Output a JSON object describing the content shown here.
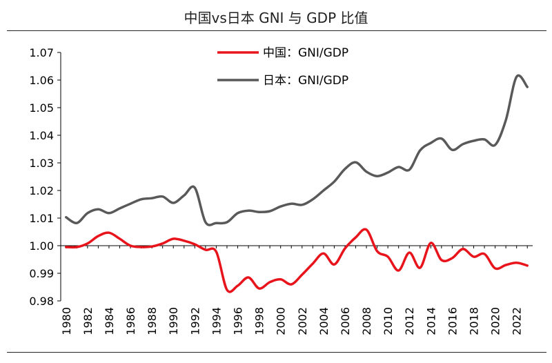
{
  "title": "中国vs日本 GNI 与 GDP 比值",
  "chart_data": {
    "type": "line",
    "title": "中国vs日本 GNI 与 GDP 比值",
    "xlabel": "",
    "ylabel": "",
    "ylim": [
      0.98,
      1.07
    ],
    "y_ticks": [
      "0.98",
      "0.99",
      "1.00",
      "1.01",
      "1.02",
      "1.03",
      "1.04",
      "1.05",
      "1.06",
      "1.07"
    ],
    "x_ticks": [
      "1980",
      "1982",
      "1984",
      "1986",
      "1988",
      "1990",
      "1992",
      "1994",
      "1996",
      "1998",
      "2000",
      "2002",
      "2004",
      "2006",
      "2008",
      "2010",
      "2012",
      "2014",
      "2016",
      "2018",
      "2020",
      "2022"
    ],
    "x": [
      1980,
      1981,
      1982,
      1983,
      1984,
      1985,
      1986,
      1987,
      1988,
      1989,
      1990,
      1991,
      1992,
      1993,
      1994,
      1995,
      1996,
      1997,
      1998,
      1999,
      2000,
      2001,
      2002,
      2003,
      2004,
      2005,
      2006,
      2007,
      2008,
      2009,
      2010,
      2011,
      2012,
      2013,
      2014,
      2015,
      2016,
      2017,
      2018,
      2019,
      2020,
      2021,
      2022,
      2023
    ],
    "grid": false,
    "legend_position": "top-center",
    "series": [
      {
        "name": "中国：GNI/GDP",
        "color": "#e8141c",
        "values": [
          0.9995,
          0.9995,
          1.0008,
          1.0035,
          1.0047,
          1.0025,
          1.0,
          0.9995,
          0.9997,
          1.0008,
          1.0025,
          1.0018,
          1.0005,
          0.9985,
          0.9978,
          0.984,
          0.9855,
          0.9885,
          0.9845,
          0.9868,
          0.9878,
          0.986,
          0.9895,
          0.9935,
          0.9972,
          0.9932,
          0.999,
          1.003,
          1.0058,
          0.998,
          0.996,
          0.991,
          0.9975,
          0.992,
          1.001,
          0.9948,
          0.9955,
          0.9988,
          0.996,
          0.997,
          0.9918,
          0.993,
          0.9938,
          0.9928
        ]
      },
      {
        "name": "日本：GNI/GDP",
        "color": "#595959",
        "values": [
          1.0103,
          1.0082,
          1.0118,
          1.0132,
          1.0118,
          1.0135,
          1.0152,
          1.0168,
          1.0172,
          1.0178,
          1.0155,
          1.0182,
          1.021,
          1.0085,
          1.0082,
          1.0085,
          1.0118,
          1.0127,
          1.0122,
          1.0125,
          1.0142,
          1.0152,
          1.0148,
          1.0168,
          1.02,
          1.0232,
          1.0278,
          1.0302,
          1.0268,
          1.0252,
          1.0265,
          1.0285,
          1.0275,
          1.0345,
          1.0372,
          1.0388,
          1.0347,
          1.0368,
          1.038,
          1.0385,
          1.0365,
          1.0455,
          1.0612,
          1.0575
        ]
      }
    ]
  }
}
